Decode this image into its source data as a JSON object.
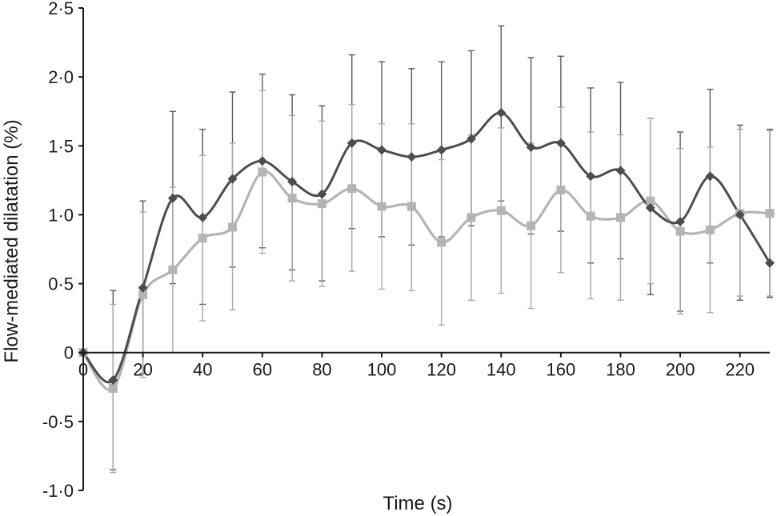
{
  "chart_data": {
    "type": "line",
    "title": "",
    "xlabel": "Time (s)",
    "ylabel": "Flow-mediated dilatation (%)",
    "xlim": [
      0,
      230
    ],
    "ylim": [
      -1.0,
      2.5
    ],
    "x_ticks": [
      {
        "value": 0,
        "label": "0"
      },
      {
        "value": 20,
        "label": "20"
      },
      {
        "value": 40,
        "label": "40"
      },
      {
        "value": 60,
        "label": "60"
      },
      {
        "value": 80,
        "label": "80"
      },
      {
        "value": 100,
        "label": "100"
      },
      {
        "value": 120,
        "label": "120"
      },
      {
        "value": 140,
        "label": "140"
      },
      {
        "value": 160,
        "label": "160"
      },
      {
        "value": 180,
        "label": "180"
      },
      {
        "value": 200,
        "label": "200"
      },
      {
        "value": 220,
        "label": "220"
      }
    ],
    "y_ticks": [
      {
        "value": 2.5,
        "label": "2·5"
      },
      {
        "value": 2.0,
        "label": "2·0"
      },
      {
        "value": 1.5,
        "label": "1·5"
      },
      {
        "value": 1.0,
        "label": "1·0"
      },
      {
        "value": 0.5,
        "label": "0·5"
      },
      {
        "value": 0,
        "label": "0"
      },
      {
        "value": -0.5,
        "label": "-0·5"
      },
      {
        "value": -1.0,
        "label": "-1·0"
      }
    ],
    "grid": false,
    "legend": "none",
    "x": [
      0,
      10,
      20,
      30,
      40,
      50,
      60,
      70,
      80,
      90,
      100,
      110,
      120,
      130,
      140,
      150,
      160,
      170,
      180,
      190,
      200,
      210,
      220,
      230
    ],
    "series": [
      {
        "marker": "diamond",
        "color": "#4d4d4d",
        "values": [
          0,
          -0.2,
          0.47,
          1.12,
          0.98,
          1.26,
          1.39,
          1.24,
          1.15,
          1.52,
          1.47,
          1.42,
          1.47,
          1.55,
          1.74,
          1.49,
          1.52,
          1.28,
          1.32,
          1.05,
          0.95,
          1.28,
          1.0,
          0.65
        ],
        "err_upper": [
          0,
          0.45,
          1.1,
          1.75,
          1.62,
          1.89,
          2.02,
          1.87,
          1.79,
          2.16,
          2.11,
          2.06,
          2.11,
          2.19,
          2.37,
          2.14,
          2.15,
          1.92,
          1.96,
          1.7,
          1.6,
          1.91,
          1.65,
          1.62
        ],
        "err_lower": [
          0,
          -0.85,
          -0.15,
          0.5,
          0.35,
          0.62,
          0.76,
          0.6,
          0.52,
          0.9,
          0.84,
          0.78,
          0.84,
          0.92,
          1.1,
          0.86,
          0.88,
          0.65,
          0.68,
          0.42,
          0.3,
          0.65,
          0.38,
          0.4
        ]
      },
      {
        "marker": "square",
        "color": "#b4b4b4",
        "values": [
          0,
          -0.26,
          0.42,
          0.6,
          0.83,
          0.91,
          1.31,
          1.12,
          1.08,
          1.19,
          1.06,
          1.06,
          0.8,
          0.98,
          1.03,
          0.92,
          1.18,
          0.99,
          0.98,
          1.1,
          0.88,
          0.89,
          1.01,
          1.01
        ],
        "err_upper": [
          0,
          0.35,
          1.02,
          1.2,
          1.43,
          1.52,
          1.9,
          1.72,
          1.68,
          1.8,
          1.66,
          1.66,
          1.4,
          1.58,
          1.63,
          1.52,
          1.78,
          1.6,
          1.58,
          1.7,
          1.48,
          1.49,
          1.62,
          1.61
        ],
        "err_lower": [
          0,
          -0.87,
          -0.18,
          0.0,
          0.23,
          0.31,
          0.72,
          0.52,
          0.48,
          0.59,
          0.46,
          0.45,
          0.2,
          0.38,
          0.43,
          0.32,
          0.58,
          0.39,
          0.38,
          0.5,
          0.28,
          0.29,
          0.41,
          0.41
        ]
      }
    ]
  }
}
